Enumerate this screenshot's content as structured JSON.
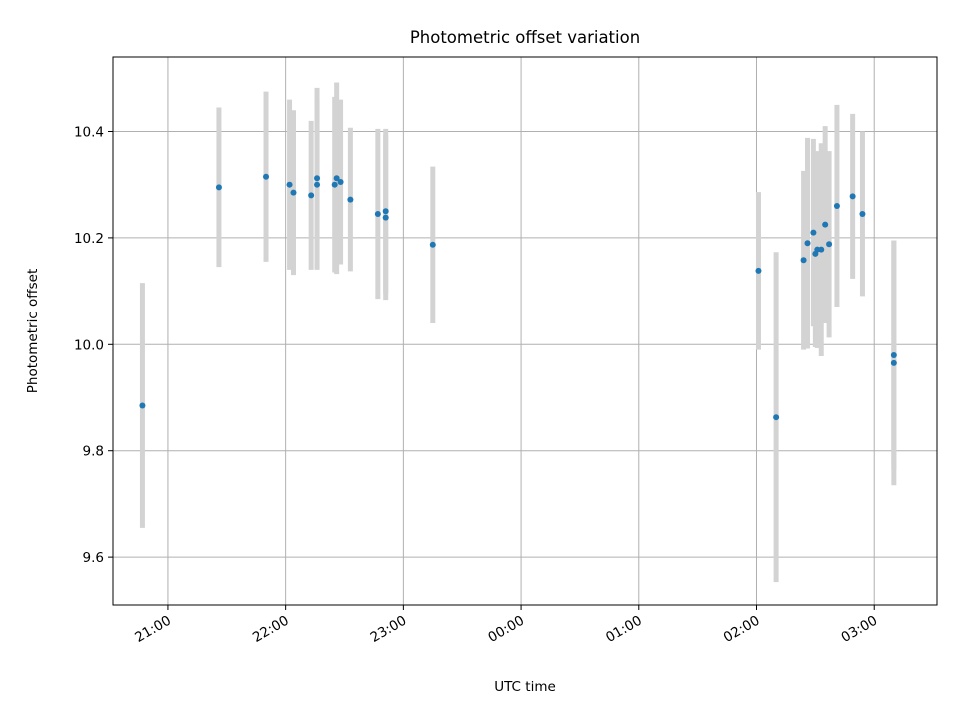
{
  "chart_data": {
    "type": "scatter",
    "title": "Photometric offset variation",
    "xlabel": "UTC time",
    "ylabel": "Photometric offset",
    "grid": true,
    "x_axis": "time",
    "xlim": [
      "20:32",
      "03:32"
    ],
    "ylim": [
      9.51,
      10.54
    ],
    "xticks": [
      "21:00",
      "22:00",
      "23:00",
      "00:00",
      "01:00",
      "02:00",
      "03:00"
    ],
    "yticks": [
      9.6,
      9.8,
      10.0,
      10.2,
      10.4
    ],
    "marker_color": "#1f77b4",
    "errorbar_color": "#d3d3d3",
    "points": [
      {
        "t": "20:47",
        "y": 9.885,
        "err": 0.23
      },
      {
        "t": "21:26",
        "y": 10.295,
        "err": 0.15
      },
      {
        "t": "21:50",
        "y": 10.315,
        "err": 0.16
      },
      {
        "t": "22:02",
        "y": 10.3,
        "err": 0.16
      },
      {
        "t": "22:04",
        "y": 10.285,
        "err": 0.155
      },
      {
        "t": "22:13",
        "y": 10.28,
        "err": 0.14
      },
      {
        "t": "22:16",
        "y": 10.3,
        "err": 0.16
      },
      {
        "t": "22:16",
        "y": 10.312,
        "err": 0.17
      },
      {
        "t": "22:25",
        "y": 10.3,
        "err": 0.165
      },
      {
        "t": "22:26",
        "y": 10.312,
        "err": 0.18
      },
      {
        "t": "22:28",
        "y": 10.305,
        "err": 0.155
      },
      {
        "t": "22:33",
        "y": 10.272,
        "err": 0.135
      },
      {
        "t": "22:47",
        "y": 10.245,
        "err": 0.16
      },
      {
        "t": "22:51",
        "y": 10.25,
        "err": 0.155
      },
      {
        "t": "22:51",
        "y": 10.238,
        "err": 0.155
      },
      {
        "t": "23:15",
        "y": 10.187,
        "err": 0.147
      },
      {
        "t": "02:01",
        "y": 10.138,
        "err": 0.148
      },
      {
        "t": "02:10",
        "y": 9.863,
        "err": 0.31
      },
      {
        "t": "02:24",
        "y": 10.158,
        "err": 0.168
      },
      {
        "t": "02:26",
        "y": 10.19,
        "err": 0.198
      },
      {
        "t": "02:29",
        "y": 10.21,
        "err": 0.176
      },
      {
        "t": "02:30",
        "y": 10.17,
        "err": 0.175
      },
      {
        "t": "02:31",
        "y": 10.178,
        "err": 0.185
      },
      {
        "t": "02:33",
        "y": 10.178,
        "err": 0.2
      },
      {
        "t": "02:35",
        "y": 10.225,
        "err": 0.185
      },
      {
        "t": "02:37",
        "y": 10.188,
        "err": 0.175
      },
      {
        "t": "02:41",
        "y": 10.26,
        "err": 0.19
      },
      {
        "t": "02:49",
        "y": 10.278,
        "err": 0.155
      },
      {
        "t": "02:54",
        "y": 10.245,
        "err": 0.155
      },
      {
        "t": "03:10",
        "y": 9.98,
        "err": 0.215
      },
      {
        "t": "03:10",
        "y": 9.965,
        "err": 0.23
      }
    ]
  }
}
